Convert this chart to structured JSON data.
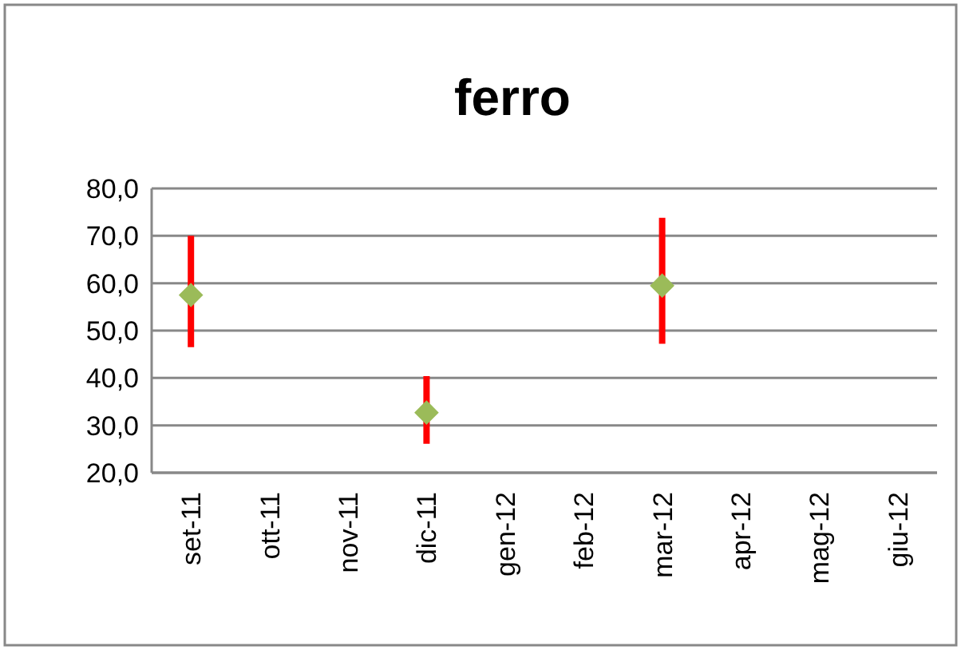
{
  "chart_data": {
    "type": "scatter",
    "title": "ferro",
    "categories": [
      "set-11",
      "ott-11",
      "nov-11",
      "dic-11",
      "gen-12",
      "feb-12",
      "mar-12",
      "apr-12",
      "mag-12",
      "giu-12"
    ],
    "values": [
      57.5,
      null,
      null,
      32.7,
      null,
      null,
      59.5,
      null,
      null,
      null
    ],
    "errors": [
      [
        46.5,
        70
      ],
      null,
      null,
      [
        26.1,
        40.4
      ],
      null,
      null,
      [
        47.2,
        73.8
      ],
      null,
      null,
      null
    ],
    "color": "#9bbb59",
    "marker": "diamond",
    "ylim": [
      20,
      80
    ],
    "yticks": [
      {
        "value": 20,
        "label": "20,0"
      },
      {
        "value": 30,
        "label": "30,0"
      },
      {
        "value": 40,
        "label": "40,0"
      },
      {
        "value": 50,
        "label": "50,0"
      },
      {
        "value": 60,
        "label": "60,0"
      },
      {
        "value": 70,
        "label": "70,0"
      },
      {
        "value": 80,
        "label": "80,0"
      }
    ],
    "grid": "y"
  }
}
